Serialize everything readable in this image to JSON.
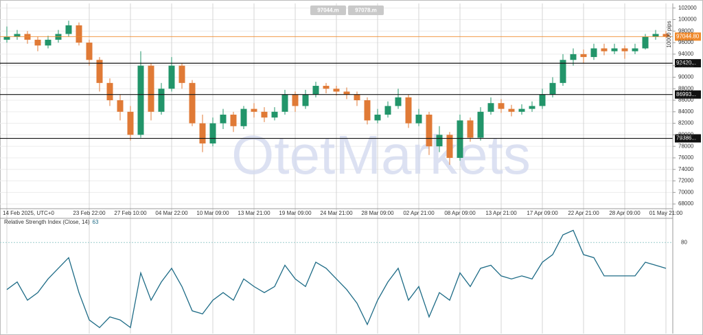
{
  "toolbar": {
    "bid": "97044.m",
    "ask": "97078.m"
  },
  "watermark": "OtetMarkets",
  "chart_data": [
    {
      "type": "candlestick",
      "categories": [
        "14 Feb 2025, UTC+0",
        null,
        null,
        null,
        null,
        null,
        null,
        null,
        "23 Feb 22:00",
        null,
        null,
        null,
        "27 Feb 10:00",
        null,
        null,
        null,
        "04 Mar 22:00",
        null,
        null,
        null,
        "10 Mar 09:00",
        null,
        null,
        null,
        "13 Mar 21:00",
        null,
        null,
        null,
        "19 Mar 09:00",
        null,
        null,
        null,
        "24 Mar 21:00",
        null,
        null,
        null,
        "28 Mar 09:00",
        null,
        null,
        null,
        "02 Apr 21:00",
        null,
        null,
        null,
        "08 Apr 09:00",
        null,
        null,
        null,
        "13 Apr 21:00",
        null,
        null,
        null,
        "17 Apr 09:00",
        null,
        null,
        null,
        "22 Apr 21:00",
        null,
        null,
        null,
        "28 Apr 09:00",
        null,
        null,
        null,
        "01 May 21:00"
      ],
      "open": [
        96500,
        97000,
        97500,
        96500,
        95500,
        96500,
        97500,
        99000,
        96000,
        93000,
        89000,
        86000,
        84000,
        80000,
        92000,
        84000,
        88000,
        92000,
        89000,
        82000,
        78500,
        82000,
        83500,
        81500,
        84500,
        84000,
        83000,
        84000,
        87000,
        85000,
        87000,
        88500,
        88000,
        87500,
        87000,
        86000,
        82500,
        83500,
        85000,
        86500,
        82000,
        83500,
        78000,
        80000,
        76000,
        82500,
        79500,
        84000,
        85500,
        84500,
        84000,
        84500,
        85000,
        87000,
        89000,
        93000,
        94000,
        93500,
        95000,
        94500,
        95000,
        94500,
        95000,
        97000,
        97500
      ],
      "high": [
        98800,
        98200,
        98000,
        97000,
        97200,
        98200,
        99800,
        99500,
        96500,
        93500,
        89800,
        87000,
        85000,
        94500,
        92500,
        89000,
        93500,
        92500,
        89500,
        83500,
        83000,
        84500,
        84000,
        85000,
        85500,
        84800,
        84800,
        87800,
        87500,
        87800,
        89200,
        89000,
        88500,
        88200,
        87500,
        86500,
        84500,
        85800,
        88000,
        87000,
        84500,
        84000,
        81500,
        80500,
        83500,
        83000,
        84800,
        86500,
        86200,
        85200,
        85300,
        85800,
        88000,
        90000,
        94000,
        95000,
        94800,
        95800,
        95800,
        95800,
        95500,
        95800,
        97500,
        98200,
        98000
      ],
      "low": [
        96000,
        96500,
        95800,
        94500,
        95000,
        96000,
        97000,
        95500,
        92000,
        87500,
        85000,
        82500,
        79000,
        79500,
        82500,
        83500,
        87500,
        88000,
        81500,
        77000,
        78000,
        81000,
        80500,
        81000,
        83000,
        82200,
        82500,
        83500,
        84000,
        84500,
        86500,
        87200,
        86800,
        86200,
        85000,
        81800,
        82000,
        83000,
        84500,
        81200,
        81500,
        76500,
        77000,
        74800,
        75500,
        78800,
        79000,
        83500,
        83800,
        83200,
        83500,
        84000,
        84500,
        86500,
        88500,
        92000,
        92500,
        93000,
        93800,
        94000,
        93200,
        94000,
        94800,
        96500,
        96800
      ],
      "close": [
        97000,
        97500,
        96500,
        95500,
        96500,
        97500,
        99000,
        96000,
        93000,
        89000,
        86000,
        84000,
        80000,
        92000,
        84000,
        88000,
        92000,
        89000,
        82000,
        78500,
        82000,
        83500,
        81500,
        84500,
        84000,
        83000,
        84000,
        87000,
        85000,
        87000,
        88500,
        88000,
        87500,
        87000,
        86000,
        82500,
        83500,
        85000,
        86500,
        82000,
        83500,
        78000,
        80000,
        76000,
        82500,
        79500,
        84000,
        85500,
        84500,
        84000,
        84500,
        85000,
        87000,
        89000,
        93000,
        94000,
        93500,
        95000,
        94500,
        95000,
        94500,
        95000,
        97000,
        97500,
        97044
      ],
      "up_color": "#22956a",
      "down_color": "#e07a36",
      "ylim": [
        67300,
        102800
      ],
      "yticks": [
        68000,
        70000,
        72000,
        74000,
        76000,
        78000,
        80000,
        82000,
        84000,
        86000,
        88000,
        90000,
        92000,
        94000,
        96000,
        98000,
        100000,
        102000
      ],
      "y_axis_label": "10000 pips",
      "grid": true,
      "price_lines": [
        {
          "value": 97044.8,
          "label": "97044.80",
          "color": "#f08a2c"
        },
        {
          "value": 92420,
          "label": "92420...",
          "color": "#111111"
        },
        {
          "value": 86993,
          "label": "86993...",
          "color": "#111111"
        },
        {
          "value": 79386,
          "label": "79386...",
          "color": "#111111"
        }
      ]
    },
    {
      "type": "line",
      "title": "Relative Strength Index (Close, 14)",
      "values": [
        49,
        54,
        42,
        47,
        56,
        63,
        70,
        47,
        29,
        24,
        31,
        29,
        24,
        60,
        42,
        54,
        63,
        51,
        35,
        33,
        42,
        47,
        42,
        56,
        51,
        47,
        51,
        65,
        56,
        51,
        67,
        63,
        56,
        49,
        40,
        26,
        42,
        54,
        63,
        42,
        51,
        31,
        47,
        42,
        60,
        51,
        63,
        65,
        58,
        56,
        58,
        56,
        67,
        72,
        85,
        88,
        72,
        70,
        58,
        58,
        58,
        58,
        67,
        65,
        63
      ],
      "color": "#1d6b86",
      "ylim": [
        20,
        95
      ],
      "yticks": [
        80
      ]
    }
  ]
}
